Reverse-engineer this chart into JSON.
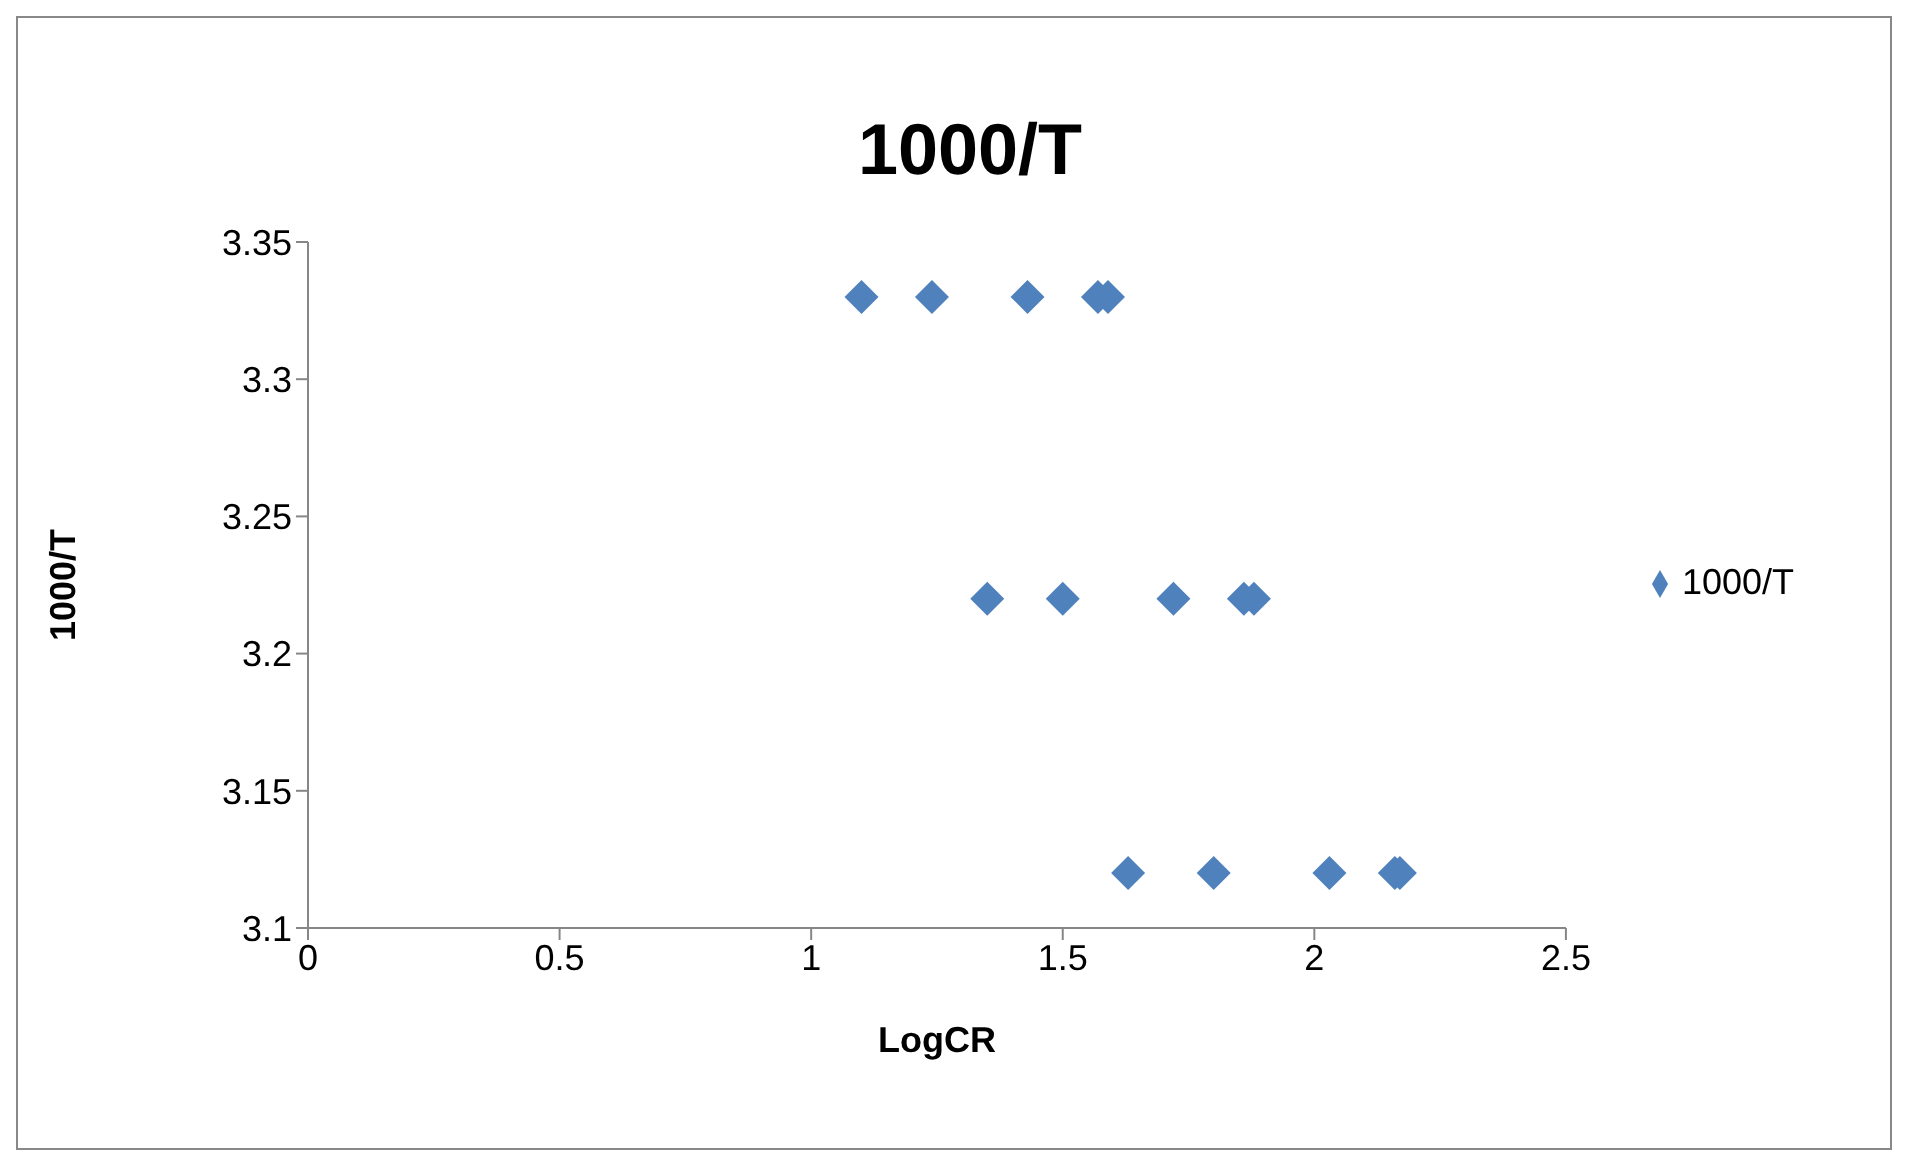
{
  "chart_data": {
    "type": "scatter",
    "title": "1000/T",
    "xlabel": "LogCR",
    "ylabel": "1000/T",
    "series": [
      {
        "name": "1000/T",
        "color": "#4f81bd",
        "x": [
          1.1,
          1.24,
          1.43,
          1.57,
          1.59,
          1.35,
          1.5,
          1.72,
          1.86,
          1.88,
          1.63,
          1.8,
          2.03,
          2.16,
          2.17
        ],
        "values": [
          3.33,
          3.33,
          3.33,
          3.33,
          3.33,
          3.22,
          3.22,
          3.22,
          3.22,
          3.22,
          3.12,
          3.12,
          3.12,
          3.12,
          3.12
        ]
      }
    ],
    "xlim": [
      0,
      2.5
    ],
    "xticks": [
      0,
      0.5,
      1,
      1.5,
      2,
      2.5
    ],
    "ylim": [
      3.1,
      3.35
    ],
    "yticks": [
      3.1,
      3.15,
      3.2,
      3.25,
      3.3,
      3.35
    ],
    "grid": false,
    "legend": "right",
    "marker": "diamond"
  }
}
